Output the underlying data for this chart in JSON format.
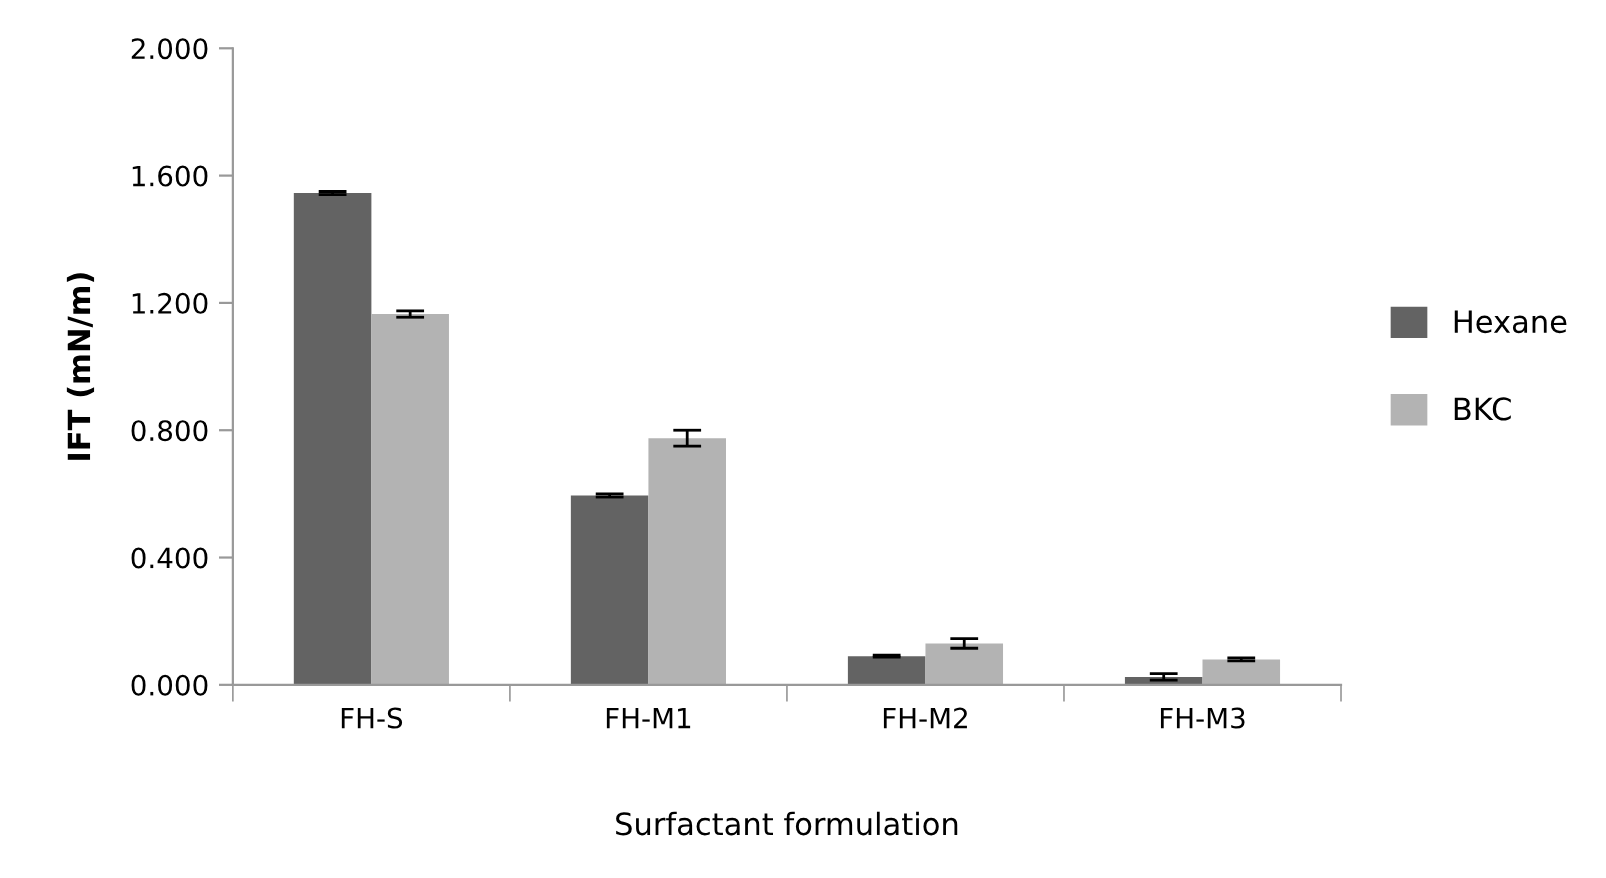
{
  "chart_data": {
    "type": "bar",
    "xlabel": "Surfactant formulation",
    "ylabel": "IFT (mN/m)",
    "categories": [
      "FH-S",
      "FH-M1",
      "FH-M2",
      "FH-M3"
    ],
    "series": [
      {
        "name": "Hexane",
        "color": "#636363",
        "values": [
          1.545,
          0.595,
          0.09,
          0.025
        ],
        "errors": [
          0.005,
          0.005,
          0.003,
          0.01
        ]
      },
      {
        "name": "BKC",
        "color": "#b3b3b3",
        "values": [
          1.165,
          0.775,
          0.13,
          0.08
        ],
        "errors": [
          0.01,
          0.025,
          0.015,
          0.005
        ]
      }
    ],
    "ylim": [
      0,
      2
    ],
    "yticks": [
      {
        "value": 0,
        "label": "0.000"
      },
      {
        "value": 0.4,
        "label": "0.400"
      },
      {
        "value": 0.8,
        "label": "0.800"
      },
      {
        "value": 1.2,
        "label": "1.200"
      },
      {
        "value": 1.6,
        "label": "1.600"
      },
      {
        "value": 2,
        "label": "2.000"
      }
    ],
    "grid": false,
    "legend": "right"
  }
}
